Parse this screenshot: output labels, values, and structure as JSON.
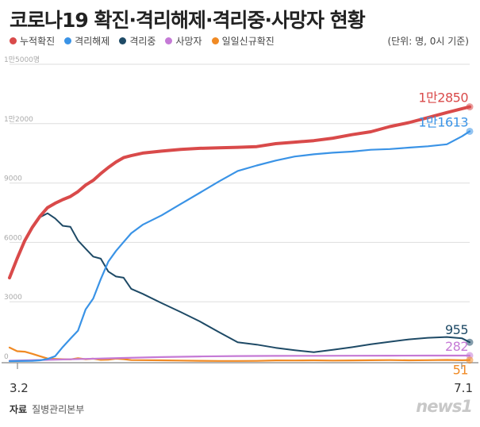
{
  "title": "코로나19 확진·격리해제·격리중·사망자 현황",
  "unit_note": "(단위: 명, 0시 기준)",
  "source_label": "자료",
  "source_text": "질병관리본부",
  "logo_text": "news1",
  "chart_data": {
    "type": "line",
    "title": "코로나19 확진·격리해제·격리중·사망자 현황",
    "x_start_label": "3.2",
    "x_end_label": "7.1",
    "ylim": [
      0,
      15000
    ],
    "y_ticks": [
      {
        "value": 0,
        "label": "0"
      },
      {
        "value": 3000,
        "label": "3000"
      },
      {
        "value": 6000,
        "label": "6000"
      },
      {
        "value": 9000,
        "label": "9000"
      },
      {
        "value": 12000,
        "label": "1만2000"
      },
      {
        "value": 15000,
        "label": "1만5000명"
      }
    ],
    "grid": true,
    "legend_position": "top-left",
    "num_points": 122,
    "series": [
      {
        "name": "누적확진",
        "color": "#d94a4a",
        "end_label": "1만2850",
        "points": [
          [
            0,
            4212
          ],
          [
            2,
            5186
          ],
          [
            4,
            6088
          ],
          [
            6,
            6767
          ],
          [
            8,
            7313
          ],
          [
            10,
            7755
          ],
          [
            12,
            7979
          ],
          [
            14,
            8162
          ],
          [
            16,
            8320
          ],
          [
            18,
            8565
          ],
          [
            20,
            8897
          ],
          [
            22,
            9137
          ],
          [
            24,
            9478
          ],
          [
            26,
            9786
          ],
          [
            28,
            10062
          ],
          [
            30,
            10284
          ],
          [
            32,
            10384
          ],
          [
            35,
            10512
          ],
          [
            40,
            10613
          ],
          [
            45,
            10702
          ],
          [
            50,
            10752
          ],
          [
            55,
            10780
          ],
          [
            60,
            10806
          ],
          [
            65,
            10840
          ],
          [
            70,
            10991
          ],
          [
            75,
            11065
          ],
          [
            80,
            11142
          ],
          [
            85,
            11265
          ],
          [
            90,
            11441
          ],
          [
            95,
            11590
          ],
          [
            100,
            11852
          ],
          [
            105,
            12051
          ],
          [
            110,
            12306
          ],
          [
            115,
            12563
          ],
          [
            119,
            12757
          ],
          [
            121,
            12850
          ]
        ]
      },
      {
        "name": "격리해제",
        "color": "#3a93e6",
        "end_label": "1만1613",
        "points": [
          [
            0,
            0
          ],
          [
            6,
            17
          ],
          [
            8,
            41
          ],
          [
            10,
            108
          ],
          [
            12,
            247
          ],
          [
            14,
            714
          ],
          [
            16,
            1137
          ],
          [
            18,
            1540
          ],
          [
            20,
            2612
          ],
          [
            22,
            3166
          ],
          [
            24,
            4144
          ],
          [
            26,
            5033
          ],
          [
            28,
            5567
          ],
          [
            30,
            6021
          ],
          [
            32,
            6463
          ],
          [
            35,
            6891
          ],
          [
            40,
            7368
          ],
          [
            45,
            7937
          ],
          [
            50,
            8501
          ],
          [
            55,
            9072
          ],
          [
            60,
            9610
          ],
          [
            65,
            9888
          ],
          [
            70,
            10135
          ],
          [
            75,
            10340
          ],
          [
            80,
            10450
          ],
          [
            85,
            10531
          ],
          [
            90,
            10590
          ],
          [
            95,
            10680
          ],
          [
            100,
            10718
          ],
          [
            105,
            10790
          ],
          [
            110,
            10856
          ],
          [
            115,
            10956
          ],
          [
            119,
            11364
          ],
          [
            121,
            11613
          ]
        ]
      },
      {
        "name": "격리중",
        "color": "#1e4a66",
        "end_label": "955",
        "points": [
          [
            0,
            4212
          ],
          [
            2,
            5186
          ],
          [
            4,
            6071
          ],
          [
            6,
            6750
          ],
          [
            8,
            7272
          ],
          [
            10,
            7470
          ],
          [
            12,
            7212
          ],
          [
            14,
            6838
          ],
          [
            16,
            6789
          ],
          [
            18,
            6098
          ],
          [
            20,
            5684
          ],
          [
            22,
            5281
          ],
          [
            24,
            5177
          ],
          [
            26,
            4523
          ],
          [
            28,
            4275
          ],
          [
            30,
            4216
          ],
          [
            32,
            3654
          ],
          [
            35,
            3403
          ],
          [
            40,
            2930
          ],
          [
            45,
            2484
          ],
          [
            50,
            2009
          ],
          [
            55,
            1477
          ],
          [
            60,
            949
          ],
          [
            65,
            834
          ],
          [
            70,
            675
          ],
          [
            75,
            555
          ],
          [
            80,
            450
          ],
          [
            85,
            570
          ],
          [
            90,
            700
          ],
          [
            95,
            850
          ],
          [
            100,
            980
          ],
          [
            105,
            1100
          ],
          [
            110,
            1180
          ],
          [
            115,
            1220
          ],
          [
            119,
            1150
          ],
          [
            121,
            955
          ]
        ]
      },
      {
        "name": "사망자",
        "color": "#c57ad6",
        "end_label": "282",
        "points": [
          [
            0,
            22
          ],
          [
            10,
            66
          ],
          [
            20,
            111
          ],
          [
            30,
            162
          ],
          [
            40,
            204
          ],
          [
            50,
            237
          ],
          [
            60,
            256
          ],
          [
            70,
            266
          ],
          [
            80,
            270
          ],
          [
            90,
            273
          ],
          [
            100,
            276
          ],
          [
            110,
            280
          ],
          [
            121,
            282
          ]
        ]
      },
      {
        "name": "일일신규확진",
        "color": "#f08a24",
        "end_label": "51",
        "points": [
          [
            0,
            686
          ],
          [
            2,
            500
          ],
          [
            4,
            476
          ],
          [
            6,
            367
          ],
          [
            8,
            248
          ],
          [
            10,
            131
          ],
          [
            12,
            114
          ],
          [
            14,
            96
          ],
          [
            16,
            90
          ],
          [
            18,
            147
          ],
          [
            20,
            98
          ],
          [
            22,
            124
          ],
          [
            24,
            64
          ],
          [
            26,
            78
          ],
          [
            28,
            125
          ],
          [
            30,
            100
          ],
          [
            32,
            53
          ],
          [
            35,
            47
          ],
          [
            40,
            39
          ],
          [
            45,
            27
          ],
          [
            50,
            18
          ],
          [
            55,
            10
          ],
          [
            60,
            8
          ],
          [
            65,
            13
          ],
          [
            70,
            35
          ],
          [
            75,
            34
          ],
          [
            80,
            40
          ],
          [
            85,
            27
          ],
          [
            90,
            38
          ],
          [
            95,
            43
          ],
          [
            100,
            51
          ],
          [
            105,
            39
          ],
          [
            110,
            49
          ],
          [
            115,
            59
          ],
          [
            119,
            46
          ],
          [
            121,
            51
          ]
        ]
      }
    ]
  }
}
